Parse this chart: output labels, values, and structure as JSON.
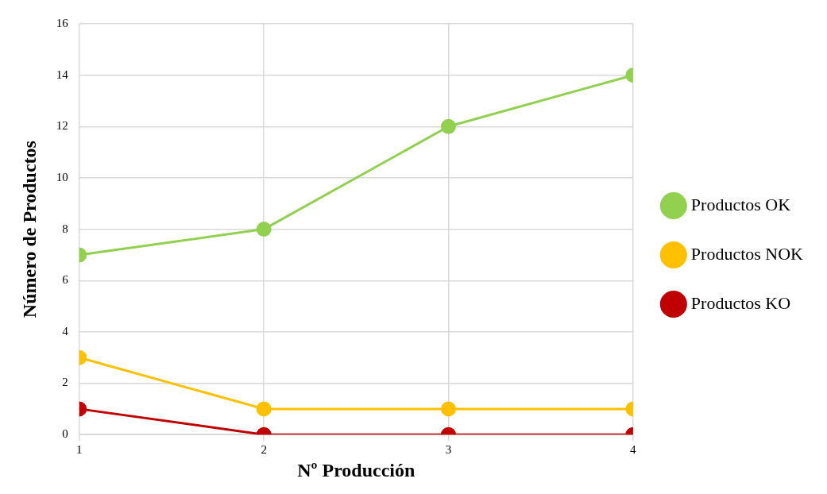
{
  "chart_data": {
    "type": "line",
    "xlabel": "Nº Producción",
    "ylabel": "Número de Productos",
    "x": [
      1,
      2,
      3,
      4
    ],
    "xlim": [
      1,
      4
    ],
    "xticks": [
      1,
      2,
      3,
      4
    ],
    "ylim": [
      0,
      16
    ],
    "yticks": [
      0,
      2,
      4,
      6,
      8,
      10,
      12,
      14,
      16
    ],
    "series": [
      {
        "name": "Productos OK",
        "color": "#92d050",
        "values": [
          7,
          8,
          12,
          14
        ]
      },
      {
        "name": "Productos NOK",
        "color": "#ffc000",
        "values": [
          3,
          1,
          1,
          1
        ]
      },
      {
        "name": "Productos KO",
        "color": "#c00000",
        "values": [
          1,
          0,
          0,
          0
        ]
      }
    ],
    "grid": true,
    "legend": "right",
    "marker": "circle",
    "line_style": "solid"
  }
}
